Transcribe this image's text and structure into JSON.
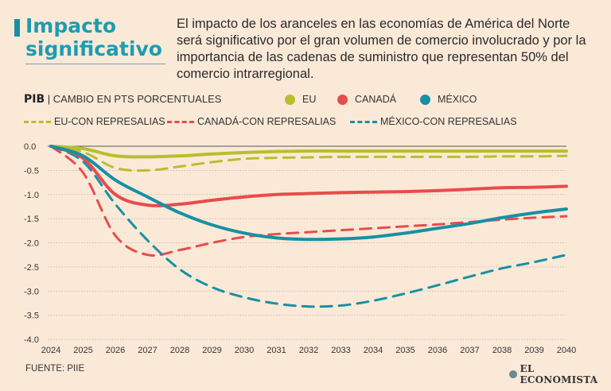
{
  "header": {
    "title": "Impacto significativo",
    "description": "El impacto de los aranceles en las economías de América del Norte será significativo por el gran volumen de comercio involucrado y por la importancia de las cadenas de suministro que representan 50% del comercio intrarregional."
  },
  "pib": {
    "label": "PIB",
    "sublabel": "CAMBIO EN PTS PORCENTUALES"
  },
  "legend": {
    "eu": "EU",
    "canada": "CANADÁ",
    "mexico": "MÉXICO",
    "eu_rep": "EU-CON REPRESALIAS",
    "canada_rep": "CANADÁ-CON REPRESALIAS",
    "mexico_rep": "MÉXICO-CON REPRESALIAS"
  },
  "footer": {
    "source": "FUENTE: PIIE",
    "brand": "EL ECONOMISTA"
  },
  "colors": {
    "eu": "#b7bf2e",
    "canada": "#e84c4c",
    "mexico": "#1890a3",
    "grid": "#b9b0a6",
    "background": "#fbe9d8",
    "title": "#1b9db1"
  },
  "chart_data": {
    "type": "line",
    "title": "Impacto significativo",
    "ylabel": "PIB | CAMBIO EN PTS PORCENTUALES",
    "x": [
      2024,
      2025,
      2026,
      2027,
      2028,
      2029,
      2030,
      2031,
      2032,
      2033,
      2034,
      2035,
      2036,
      2037,
      2038,
      2039,
      2040
    ],
    "ylim": [
      -4.0,
      0.0
    ],
    "yticks": [
      0.0,
      -0.5,
      -1.0,
      -1.5,
      -2.0,
      -2.5,
      -3.0,
      -3.5,
      -4.0
    ],
    "ytick_labels": [
      "0.0",
      "-0.5",
      "-1.0",
      "-1.5",
      "-2.0",
      "-2.5",
      "-3.0",
      "-3.5",
      "-4.0"
    ],
    "grid": true,
    "series": [
      {
        "name": "EU",
        "key": "eu",
        "style": "solid",
        "values": [
          0.0,
          -0.05,
          -0.2,
          -0.22,
          -0.2,
          -0.16,
          -0.13,
          -0.11,
          -0.1,
          -0.1,
          -0.1,
          -0.1,
          -0.1,
          -0.1,
          -0.1,
          -0.1,
          -0.1
        ]
      },
      {
        "name": "CANADÁ",
        "key": "canada",
        "style": "solid",
        "values": [
          0.0,
          -0.25,
          -1.0,
          -1.22,
          -1.2,
          -1.12,
          -1.05,
          -1.0,
          -0.98,
          -0.96,
          -0.95,
          -0.94,
          -0.92,
          -0.89,
          -0.86,
          -0.85,
          -0.83
        ]
      },
      {
        "name": "MÉXICO",
        "key": "mexico",
        "style": "solid",
        "values": [
          0.0,
          -0.2,
          -0.7,
          -1.05,
          -1.38,
          -1.63,
          -1.8,
          -1.9,
          -1.93,
          -1.92,
          -1.88,
          -1.8,
          -1.7,
          -1.6,
          -1.48,
          -1.38,
          -1.3
        ]
      },
      {
        "name": "EU-CON REPRESALIAS",
        "key": "eu",
        "style": "dashed",
        "values": [
          0.0,
          -0.12,
          -0.45,
          -0.5,
          -0.42,
          -0.33,
          -0.26,
          -0.24,
          -0.23,
          -0.22,
          -0.22,
          -0.22,
          -0.22,
          -0.22,
          -0.21,
          -0.21,
          -0.2
        ]
      },
      {
        "name": "CANADÁ-CON REPRESALIAS",
        "key": "canada",
        "style": "dashed",
        "values": [
          0.0,
          -0.55,
          -1.85,
          -2.25,
          -2.15,
          -2.0,
          -1.88,
          -1.82,
          -1.78,
          -1.74,
          -1.7,
          -1.66,
          -1.62,
          -1.57,
          -1.52,
          -1.48,
          -1.45
        ]
      },
      {
        "name": "MÉXICO-CON REPRESALIAS",
        "key": "mexico",
        "style": "dashed",
        "values": [
          0.0,
          -0.32,
          -1.2,
          -1.95,
          -2.55,
          -2.92,
          -3.13,
          -3.26,
          -3.32,
          -3.3,
          -3.2,
          -3.05,
          -2.88,
          -2.7,
          -2.53,
          -2.4,
          -2.25
        ]
      }
    ]
  }
}
